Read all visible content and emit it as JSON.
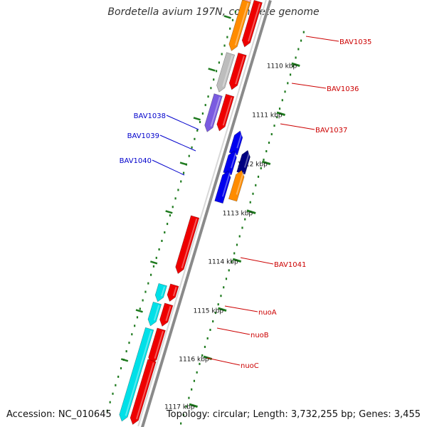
{
  "title": "Bordetella avium 197N, complete genome",
  "footer": {
    "accession": "Accession: NC_010645",
    "summary": "Topology: circular; Length: 3,732,255 bp; Genes: 3,455"
  },
  "colors": {
    "backbone": "#8a8a8a",
    "tick": "#1e7a1e",
    "kbp_label": "#111111",
    "forward_label": "#cc0000",
    "reverse_label": "#0000cc",
    "cds": "#ee0000",
    "gene_forward_a": "#ff8c00",
    "gene_forward_b": "#bdbdbd",
    "gene_forward_c": "#7a5be0",
    "gene_forward_d": "#00e0e8",
    "gene_reverse_a": "#0000ee",
    "gene_reverse_b": "#000080",
    "gene_reverse_c": "#ff8c00"
  },
  "kbp_labels": [
    "1110 kbp",
    "1111 kbp",
    "1112 kbp",
    "1113 kbp",
    "1114 kbp",
    "1115 kbp",
    "1116 kbp",
    "1117 kbp"
  ],
  "gene_labels": [
    {
      "text": "BAV1035",
      "strand": "forward"
    },
    {
      "text": "BAV1036",
      "strand": "forward"
    },
    {
      "text": "BAV1037",
      "strand": "forward"
    },
    {
      "text": "BAV1038",
      "strand": "reverse"
    },
    {
      "text": "BAV1039",
      "strand": "reverse"
    },
    {
      "text": "BAV1040",
      "strand": "reverse"
    },
    {
      "text": "BAV1041",
      "strand": "forward"
    },
    {
      "text": "nuoA",
      "strand": "forward"
    },
    {
      "text": "nuoB",
      "strand": "forward"
    },
    {
      "text": "nuoC",
      "strand": "forward"
    }
  ]
}
